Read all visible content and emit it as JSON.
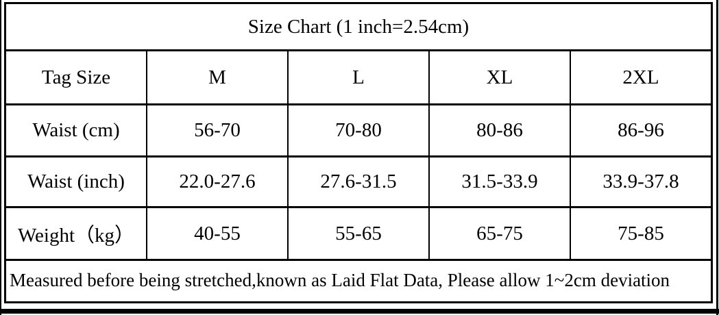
{
  "title": "Size Chart (1 inch=2.54cm)",
  "table": {
    "columns": [
      "Tag Size",
      "M",
      "L",
      "XL",
      "2XL"
    ],
    "rows": [
      {
        "label": "Waist (cm)",
        "values": [
          "56-70",
          "70-80",
          "80-86",
          "86-96"
        ]
      },
      {
        "label": "Waist (inch)",
        "values": [
          "22.0-27.6",
          "27.6-31.5",
          "31.5-33.9",
          "33.9-37.8"
        ]
      },
      {
        "label": "Weight（kg）",
        "values": [
          "40-55",
          "55-65",
          "65-75",
          "75-85"
        ]
      }
    ],
    "footnote": "Measured before being stretched,known as Laid Flat Data, Please allow 1~2cm deviation"
  },
  "colors": {
    "border": "#000000",
    "text": "#000000",
    "background": "#ffffff"
  }
}
